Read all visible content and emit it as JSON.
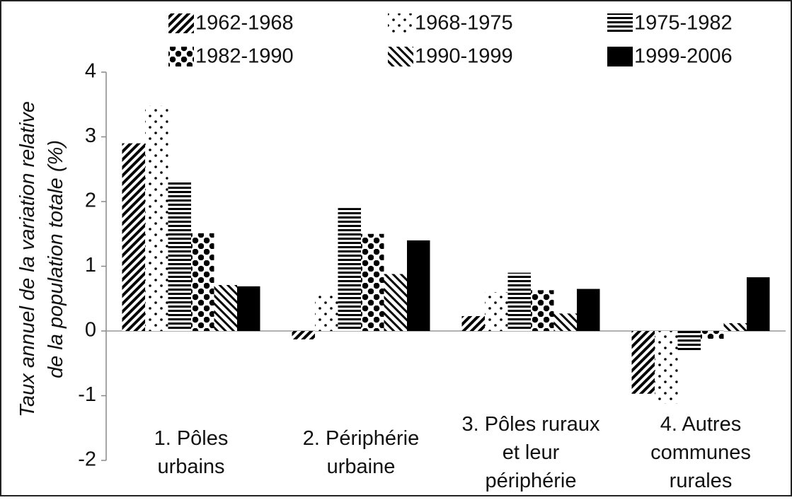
{
  "chart_data": {
    "type": "bar",
    "y_label": [
      "Taux annuel de la variation relative",
      "de la population totale (%)"
    ],
    "categories": [
      [
        "1. Pôles",
        "urbains"
      ],
      [
        "2. Périphérie",
        "urbaine"
      ],
      [
        "3. Pôles ruraux",
        "et leur",
        "périphérie"
      ],
      [
        "4. Autres",
        "communes",
        "rurales"
      ]
    ],
    "series": [
      {
        "name": "1962-1968",
        "pattern": "back-diagonal",
        "color": "#000000",
        "values": [
          2.9,
          -0.13,
          0.23,
          -0.97
        ]
      },
      {
        "name": "1968-1975",
        "pattern": "sparse-dots",
        "color": "#000000",
        "values": [
          3.48,
          0.58,
          0.6,
          -1.12
        ]
      },
      {
        "name": "1975-1982",
        "pattern": "horizontal",
        "color": "#000000",
        "values": [
          2.3,
          1.9,
          0.9,
          -0.32
        ]
      },
      {
        "name": "1982-1990",
        "pattern": "large-dots",
        "color": "#000000",
        "values": [
          1.51,
          1.5,
          0.63,
          -0.12
        ]
      },
      {
        "name": "1990-1999",
        "pattern": "forward-diagonal",
        "color": "#000000",
        "values": [
          0.71,
          0.88,
          0.27,
          0.12
        ]
      },
      {
        "name": "1999-2006",
        "pattern": "solid",
        "color": "#000000",
        "values": [
          0.69,
          1.4,
          0.65,
          0.83
        ]
      }
    ],
    "ylim": [
      -2,
      4
    ],
    "yticks": [
      -2,
      -1,
      0,
      1,
      2,
      3,
      4
    ],
    "legend": "top"
  }
}
